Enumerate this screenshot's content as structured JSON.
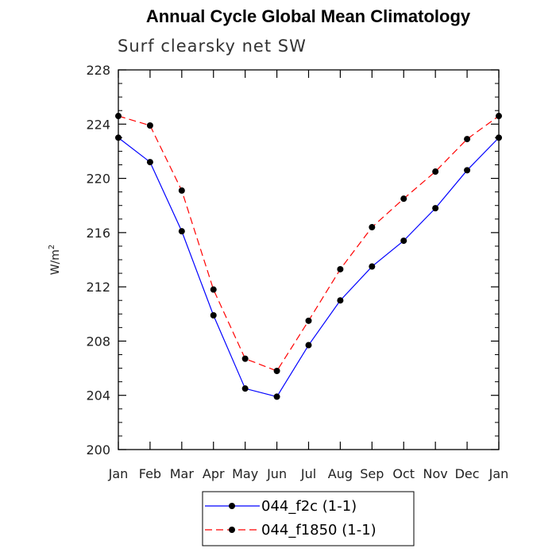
{
  "chart_data": {
    "type": "line",
    "title": "Annual Cycle Global Mean Climatology",
    "subtitle": "Surf clearsky net SW",
    "ylabel": "W/m",
    "ylabel_sup": "2",
    "xlabel": "",
    "ylim": [
      200,
      228
    ],
    "yticks": [
      200,
      204,
      208,
      212,
      216,
      220,
      224,
      228
    ],
    "categories": [
      "Jan",
      "Feb",
      "Mar",
      "Apr",
      "May",
      "Jun",
      "Jul",
      "Aug",
      "Sep",
      "Oct",
      "Nov",
      "Dec",
      "Jan"
    ],
    "series": [
      {
        "name": "044_f2c (1-1)",
        "color": "#0000ff",
        "dash": "solid",
        "values": [
          223.0,
          221.2,
          216.1,
          209.9,
          204.5,
          203.9,
          207.7,
          211.0,
          213.5,
          215.4,
          217.8,
          220.6,
          223.0
        ]
      },
      {
        "name": "044_f1850 (1-1)",
        "color": "#ff0000",
        "dash": "dashed",
        "values": [
          224.6,
          223.9,
          219.1,
          211.8,
          206.7,
          205.8,
          209.5,
          213.3,
          216.4,
          218.5,
          220.5,
          222.9,
          224.6
        ]
      }
    ],
    "legend_position": "bottom"
  }
}
